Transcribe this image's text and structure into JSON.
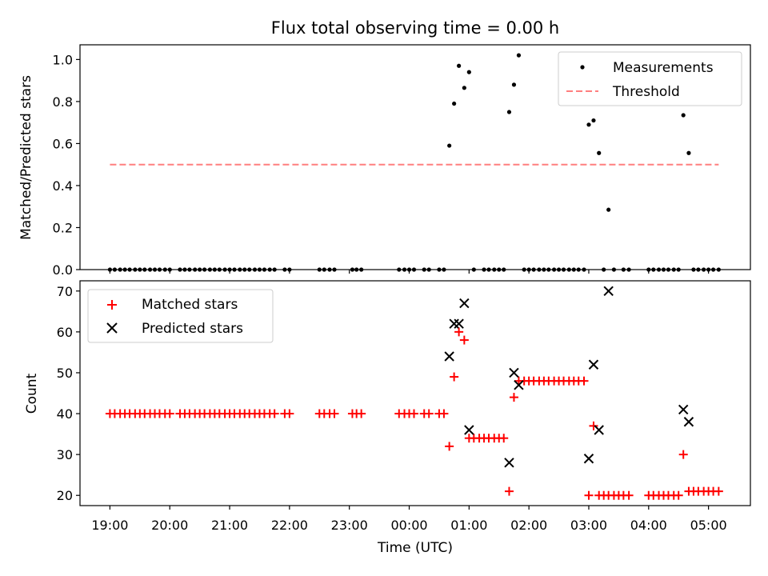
{
  "chart_data": {
    "title": "Flux total observing time = 0.00 h",
    "xlabel": "Time (UTC)",
    "x_ticks": [
      "19:00",
      "20:00",
      "21:00",
      "22:00",
      "23:00",
      "00:00",
      "01:00",
      "02:00",
      "03:00",
      "04:00",
      "05:00"
    ],
    "x_tick_hours": [
      0,
      1,
      2,
      3,
      4,
      5,
      6,
      7,
      8,
      9,
      10
    ],
    "x_range_hours": [
      -0.5,
      10.7
    ],
    "panels": [
      {
        "type": "scatter",
        "ylabel": "Matched/Predicted stars",
        "ylim": [
          0,
          1.07
        ],
        "y_ticks": [
          0.0,
          0.2,
          0.4,
          0.6,
          0.8,
          1.0
        ],
        "y_tick_labels": [
          "0.0",
          "0.2",
          "0.4",
          "0.6",
          "0.8",
          "1.0"
        ],
        "legend_position": "top-right",
        "series": [
          {
            "name": "Measurements",
            "marker": "dot",
            "color": "#000000",
            "points": [
              [
                0.0,
                0
              ],
              [
                0.08,
                0
              ],
              [
                0.17,
                0
              ],
              [
                0.25,
                0
              ],
              [
                0.33,
                0
              ],
              [
                0.42,
                0
              ],
              [
                0.5,
                0
              ],
              [
                0.58,
                0
              ],
              [
                0.67,
                0
              ],
              [
                0.75,
                0
              ],
              [
                0.83,
                0
              ],
              [
                0.92,
                0
              ],
              [
                1.0,
                0
              ],
              [
                1.17,
                0
              ],
              [
                1.25,
                0
              ],
              [
                1.33,
                0
              ],
              [
                1.42,
                0
              ],
              [
                1.5,
                0
              ],
              [
                1.58,
                0
              ],
              [
                1.67,
                0
              ],
              [
                1.75,
                0
              ],
              [
                1.83,
                0
              ],
              [
                1.92,
                0
              ],
              [
                2.0,
                0
              ],
              [
                2.08,
                0
              ],
              [
                2.17,
                0
              ],
              [
                2.25,
                0
              ],
              [
                2.33,
                0
              ],
              [
                2.42,
                0
              ],
              [
                2.5,
                0
              ],
              [
                2.58,
                0
              ],
              [
                2.67,
                0
              ],
              [
                2.75,
                0
              ],
              [
                2.92,
                0
              ],
              [
                3.0,
                0
              ],
              [
                3.5,
                0
              ],
              [
                3.58,
                0
              ],
              [
                3.67,
                0
              ],
              [
                3.75,
                0
              ],
              [
                4.05,
                0
              ],
              [
                4.12,
                0
              ],
              [
                4.2,
                0
              ],
              [
                4.83,
                0
              ],
              [
                4.92,
                0
              ],
              [
                5.0,
                0
              ],
              [
                5.08,
                0
              ],
              [
                5.25,
                0
              ],
              [
                5.33,
                0
              ],
              [
                5.5,
                0
              ],
              [
                5.58,
                0
              ],
              [
                5.67,
                0.59
              ],
              [
                5.75,
                0.79
              ],
              [
                5.83,
                0.97
              ],
              [
                5.92,
                0.865
              ],
              [
                6.0,
                0.94
              ],
              [
                6.08,
                0
              ],
              [
                6.25,
                0
              ],
              [
                6.33,
                0
              ],
              [
                6.42,
                0
              ],
              [
                6.5,
                0
              ],
              [
                6.58,
                0
              ],
              [
                6.67,
                0.75
              ],
              [
                6.75,
                0.88
              ],
              [
                6.83,
                1.02
              ],
              [
                6.92,
                0
              ],
              [
                7.0,
                0
              ],
              [
                7.08,
                0
              ],
              [
                7.17,
                0
              ],
              [
                7.25,
                0
              ],
              [
                7.33,
                0
              ],
              [
                7.42,
                0
              ],
              [
                7.5,
                0
              ],
              [
                7.58,
                0
              ],
              [
                7.67,
                0
              ],
              [
                7.75,
                0
              ],
              [
                7.83,
                0
              ],
              [
                7.92,
                0
              ],
              [
                8.0,
                0.69
              ],
              [
                8.08,
                0.71
              ],
              [
                8.17,
                0.555
              ],
              [
                8.33,
                0.285
              ],
              [
                8.25,
                0
              ],
              [
                8.42,
                0
              ],
              [
                8.58,
                0
              ],
              [
                8.67,
                0
              ],
              [
                9.0,
                0
              ],
              [
                9.08,
                0
              ],
              [
                9.17,
                0
              ],
              [
                9.25,
                0
              ],
              [
                9.33,
                0
              ],
              [
                9.42,
                0
              ],
              [
                9.5,
                0
              ],
              [
                9.58,
                0.735
              ],
              [
                9.67,
                0.555
              ],
              [
                9.75,
                0
              ],
              [
                9.83,
                0
              ],
              [
                9.92,
                0
              ],
              [
                10.0,
                0
              ],
              [
                10.08,
                0
              ],
              [
                10.17,
                0
              ]
            ]
          },
          {
            "name": "Threshold",
            "style": "dashed",
            "color": "#ff7f7f",
            "x": [
              0.0,
              10.17
            ],
            "y": [
              0.5,
              0.5
            ]
          }
        ]
      },
      {
        "type": "scatter",
        "ylabel": "Count",
        "ylim": [
          17.5,
          72.5
        ],
        "y_ticks": [
          20,
          30,
          40,
          50,
          60,
          70
        ],
        "y_tick_labels": [
          "20",
          "30",
          "40",
          "50",
          "60",
          "70"
        ],
        "legend_position": "top-left",
        "series": [
          {
            "name": "Matched stars",
            "marker": "plus",
            "color": "#ff0000",
            "points": [
              [
                0.0,
                40
              ],
              [
                0.08,
                40
              ],
              [
                0.17,
                40
              ],
              [
                0.25,
                40
              ],
              [
                0.33,
                40
              ],
              [
                0.42,
                40
              ],
              [
                0.5,
                40
              ],
              [
                0.58,
                40
              ],
              [
                0.67,
                40
              ],
              [
                0.75,
                40
              ],
              [
                0.83,
                40
              ],
              [
                0.92,
                40
              ],
              [
                1.0,
                40
              ],
              [
                1.17,
                40
              ],
              [
                1.25,
                40
              ],
              [
                1.33,
                40
              ],
              [
                1.42,
                40
              ],
              [
                1.5,
                40
              ],
              [
                1.58,
                40
              ],
              [
                1.67,
                40
              ],
              [
                1.75,
                40
              ],
              [
                1.83,
                40
              ],
              [
                1.92,
                40
              ],
              [
                2.0,
                40
              ],
              [
                2.08,
                40
              ],
              [
                2.17,
                40
              ],
              [
                2.25,
                40
              ],
              [
                2.33,
                40
              ],
              [
                2.42,
                40
              ],
              [
                2.5,
                40
              ],
              [
                2.58,
                40
              ],
              [
                2.67,
                40
              ],
              [
                2.75,
                40
              ],
              [
                2.92,
                40
              ],
              [
                3.0,
                40
              ],
              [
                3.5,
                40
              ],
              [
                3.58,
                40
              ],
              [
                3.67,
                40
              ],
              [
                3.75,
                40
              ],
              [
                4.05,
                40
              ],
              [
                4.12,
                40
              ],
              [
                4.2,
                40
              ],
              [
                4.83,
                40
              ],
              [
                4.92,
                40
              ],
              [
                5.0,
                40
              ],
              [
                5.08,
                40
              ],
              [
                5.25,
                40
              ],
              [
                5.33,
                40
              ],
              [
                5.5,
                40
              ],
              [
                5.58,
                40
              ],
              [
                5.67,
                32
              ],
              [
                5.75,
                49
              ],
              [
                5.83,
                60
              ],
              [
                5.92,
                58
              ],
              [
                6.0,
                34
              ],
              [
                6.08,
                34
              ],
              [
                6.17,
                34
              ],
              [
                6.25,
                34
              ],
              [
                6.33,
                34
              ],
              [
                6.42,
                34
              ],
              [
                6.5,
                34
              ],
              [
                6.58,
                34
              ],
              [
                6.67,
                21
              ],
              [
                6.75,
                44
              ],
              [
                6.83,
                48
              ],
              [
                6.92,
                48
              ],
              [
                7.0,
                48
              ],
              [
                7.08,
                48
              ],
              [
                7.17,
                48
              ],
              [
                7.25,
                48
              ],
              [
                7.33,
                48
              ],
              [
                7.42,
                48
              ],
              [
                7.5,
                48
              ],
              [
                7.58,
                48
              ],
              [
                7.67,
                48
              ],
              [
                7.75,
                48
              ],
              [
                7.83,
                48
              ],
              [
                7.92,
                48
              ],
              [
                8.0,
                20
              ],
              [
                8.08,
                37
              ],
              [
                8.17,
                20
              ],
              [
                8.25,
                20
              ],
              [
                8.33,
                20
              ],
              [
                8.42,
                20
              ],
              [
                8.5,
                20
              ],
              [
                8.58,
                20
              ],
              [
                8.67,
                20
              ],
              [
                9.0,
                20
              ],
              [
                9.08,
                20
              ],
              [
                9.17,
                20
              ],
              [
                9.25,
                20
              ],
              [
                9.33,
                20
              ],
              [
                9.42,
                20
              ],
              [
                9.5,
                20
              ],
              [
                9.58,
                30
              ],
              [
                9.67,
                21
              ],
              [
                9.75,
                21
              ],
              [
                9.83,
                21
              ],
              [
                9.92,
                21
              ],
              [
                10.0,
                21
              ],
              [
                10.08,
                21
              ],
              [
                10.17,
                21
              ]
            ]
          },
          {
            "name": "Predicted stars",
            "marker": "x",
            "color": "#000000",
            "points": [
              [
                5.67,
                54
              ],
              [
                5.75,
                62
              ],
              [
                5.83,
                62
              ],
              [
                5.92,
                67
              ],
              [
                6.0,
                36
              ],
              [
                6.67,
                28
              ],
              [
                6.75,
                50
              ],
              [
                6.83,
                47
              ],
              [
                8.0,
                29
              ],
              [
                8.08,
                52
              ],
              [
                8.17,
                36
              ],
              [
                8.33,
                70
              ],
              [
                9.58,
                41
              ],
              [
                9.67,
                38
              ]
            ]
          }
        ]
      }
    ]
  }
}
